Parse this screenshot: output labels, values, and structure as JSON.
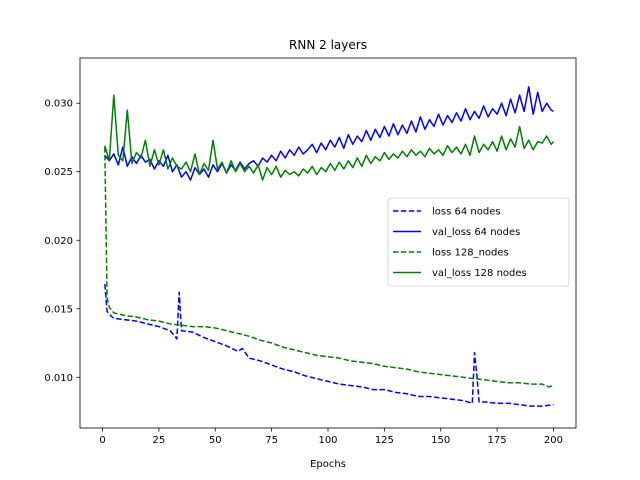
{
  "chart_data": {
    "type": "line",
    "title": "RNN 2 layers",
    "xlabel": "Epochs",
    "ylabel": "",
    "xlim": [
      -10,
      210
    ],
    "ylim": [
      0.0063,
      0.0333
    ],
    "xticks": [
      0,
      25,
      50,
      75,
      100,
      125,
      150,
      175,
      200
    ],
    "yticks": [
      0.01,
      0.015,
      0.02,
      0.025,
      0.03
    ],
    "ytick_labels": [
      "0.010",
      "0.015",
      "0.020",
      "0.025",
      "0.030"
    ],
    "grid": false,
    "legend_position": "center-right",
    "series": [
      {
        "name": "loss 64 nodes",
        "color": "#0000ff",
        "dash": true,
        "x": [
          1,
          2,
          3,
          5,
          10,
          15,
          20,
          25,
          30,
          33,
          34,
          35,
          40,
          45,
          50,
          55,
          60,
          62,
          65,
          70,
          75,
          80,
          85,
          90,
          95,
          100,
          105,
          110,
          115,
          120,
          125,
          130,
          135,
          140,
          145,
          150,
          155,
          160,
          164,
          165,
          166,
          167,
          170,
          175,
          180,
          185,
          190,
          195,
          200
        ],
        "y": [
          0.0168,
          0.0148,
          0.0146,
          0.0143,
          0.0142,
          0.0141,
          0.0139,
          0.0137,
          0.0134,
          0.0128,
          0.0162,
          0.0134,
          0.0133,
          0.0129,
          0.0126,
          0.0123,
          0.0119,
          0.0121,
          0.0114,
          0.0112,
          0.0109,
          0.0106,
          0.0104,
          0.0101,
          0.0099,
          0.0097,
          0.0095,
          0.0094,
          0.0093,
          0.0091,
          0.0091,
          0.0089,
          0.0088,
          0.0086,
          0.0086,
          0.0085,
          0.0084,
          0.0083,
          0.0081,
          0.0118,
          0.0102,
          0.0082,
          0.0082,
          0.0081,
          0.0081,
          0.008,
          0.0079,
          0.0079,
          0.008
        ]
      },
      {
        "name": "val_loss 64 nodes",
        "color": "#0000ff",
        "dash": false,
        "x": [
          1,
          3,
          5,
          7,
          9,
          11,
          13,
          15,
          17,
          19,
          21,
          23,
          25,
          27,
          29,
          31,
          33,
          35,
          37,
          39,
          41,
          43,
          45,
          47,
          49,
          51,
          53,
          55,
          57,
          59,
          61,
          63,
          65,
          67,
          69,
          71,
          73,
          75,
          77,
          79,
          81,
          83,
          85,
          87,
          89,
          91,
          93,
          95,
          97,
          99,
          101,
          103,
          105,
          107,
          109,
          111,
          113,
          115,
          117,
          119,
          121,
          123,
          125,
          127,
          129,
          131,
          133,
          135,
          137,
          139,
          141,
          143,
          145,
          147,
          149,
          151,
          153,
          155,
          157,
          159,
          161,
          163,
          165,
          167,
          169,
          171,
          173,
          175,
          177,
          179,
          181,
          183,
          185,
          187,
          189,
          191,
          193,
          195,
          197,
          199,
          200
        ],
        "y": [
          0.0262,
          0.0258,
          0.0263,
          0.0255,
          0.0268,
          0.0254,
          0.0261,
          0.0256,
          0.0262,
          0.0257,
          0.0259,
          0.0252,
          0.0258,
          0.0254,
          0.0262,
          0.025,
          0.0255,
          0.0246,
          0.025,
          0.0244,
          0.0253,
          0.0248,
          0.0252,
          0.0246,
          0.0255,
          0.025,
          0.0256,
          0.0249,
          0.0255,
          0.0251,
          0.0257,
          0.0252,
          0.0256,
          0.0258,
          0.0254,
          0.026,
          0.0257,
          0.0262,
          0.0258,
          0.0265,
          0.026,
          0.0266,
          0.0262,
          0.0268,
          0.0263,
          0.0266,
          0.027,
          0.0264,
          0.0271,
          0.0266,
          0.0273,
          0.0268,
          0.0275,
          0.0267,
          0.0277,
          0.027,
          0.0276,
          0.0272,
          0.028,
          0.0273,
          0.0281,
          0.0275,
          0.0283,
          0.0276,
          0.0285,
          0.0277,
          0.0284,
          0.0278,
          0.0287,
          0.0279,
          0.029,
          0.0281,
          0.0288,
          0.0283,
          0.0292,
          0.0284,
          0.0291,
          0.0286,
          0.0293,
          0.0287,
          0.0296,
          0.0288,
          0.0294,
          0.0289,
          0.0298,
          0.029,
          0.0296,
          0.0292,
          0.03,
          0.0291,
          0.0303,
          0.0293,
          0.0306,
          0.0294,
          0.0312,
          0.0292,
          0.0308,
          0.0294,
          0.03,
          0.0295,
          0.0294
        ]
      },
      {
        "name": "loss 128_nodes",
        "color": "#008000",
        "dash": true,
        "x": [
          1,
          2,
          3,
          5,
          10,
          15,
          20,
          25,
          30,
          35,
          40,
          45,
          50,
          55,
          60,
          65,
          70,
          75,
          80,
          85,
          90,
          95,
          100,
          105,
          110,
          115,
          120,
          125,
          130,
          135,
          140,
          145,
          150,
          155,
          160,
          165,
          170,
          175,
          180,
          185,
          190,
          195,
          198,
          200
        ],
        "y": [
          0.0268,
          0.0158,
          0.0151,
          0.0147,
          0.0145,
          0.0144,
          0.0142,
          0.0141,
          0.0139,
          0.0138,
          0.0137,
          0.0137,
          0.0136,
          0.0134,
          0.0132,
          0.013,
          0.0127,
          0.0125,
          0.0122,
          0.012,
          0.0118,
          0.0116,
          0.0115,
          0.0114,
          0.0112,
          0.0111,
          0.011,
          0.0108,
          0.0107,
          0.0106,
          0.0104,
          0.0103,
          0.0102,
          0.0101,
          0.01,
          0.0099,
          0.0098,
          0.0097,
          0.0096,
          0.0096,
          0.0095,
          0.0095,
          0.0093,
          0.0094
        ]
      },
      {
        "name": "val_loss 128 nodes",
        "color": "#008000",
        "dash": false,
        "x": [
          1,
          3,
          5,
          7,
          9,
          11,
          13,
          15,
          17,
          19,
          21,
          23,
          25,
          27,
          29,
          31,
          33,
          35,
          37,
          39,
          41,
          43,
          45,
          47,
          49,
          51,
          53,
          55,
          57,
          59,
          61,
          63,
          65,
          67,
          69,
          71,
          73,
          75,
          77,
          79,
          81,
          83,
          85,
          87,
          89,
          91,
          93,
          95,
          97,
          99,
          101,
          103,
          105,
          107,
          109,
          111,
          113,
          115,
          117,
          119,
          121,
          123,
          125,
          127,
          129,
          131,
          133,
          135,
          137,
          139,
          141,
          143,
          145,
          147,
          149,
          151,
          153,
          155,
          157,
          159,
          161,
          163,
          165,
          167,
          169,
          171,
          173,
          175,
          177,
          179,
          181,
          183,
          185,
          187,
          189,
          191,
          193,
          195,
          197,
          199,
          200
        ],
        "y": [
          0.0269,
          0.0258,
          0.0306,
          0.0262,
          0.0258,
          0.0295,
          0.0256,
          0.0264,
          0.026,
          0.0273,
          0.0254,
          0.0266,
          0.0255,
          0.0266,
          0.0252,
          0.026,
          0.0254,
          0.0252,
          0.0257,
          0.025,
          0.0263,
          0.0248,
          0.0256,
          0.0251,
          0.0273,
          0.0252,
          0.0257,
          0.0249,
          0.0258,
          0.025,
          0.0256,
          0.025,
          0.0254,
          0.0249,
          0.0255,
          0.0244,
          0.0253,
          0.0248,
          0.0254,
          0.0246,
          0.0251,
          0.0248,
          0.025,
          0.0247,
          0.0252,
          0.0249,
          0.0254,
          0.0248,
          0.0253,
          0.025,
          0.0256,
          0.0251,
          0.0257,
          0.0252,
          0.0258,
          0.0253,
          0.026,
          0.0254,
          0.0262,
          0.0256,
          0.0261,
          0.0258,
          0.0264,
          0.0259,
          0.0263,
          0.026,
          0.0265,
          0.0261,
          0.0266,
          0.0262,
          0.0265,
          0.0261,
          0.0267,
          0.0263,
          0.0266,
          0.0262,
          0.0269,
          0.0264,
          0.0268,
          0.0263,
          0.027,
          0.0262,
          0.0276,
          0.0264,
          0.027,
          0.0266,
          0.0272,
          0.0265,
          0.0276,
          0.0266,
          0.0274,
          0.0268,
          0.0283,
          0.0267,
          0.0273,
          0.0266,
          0.0272,
          0.0271,
          0.0276,
          0.027,
          0.0272
        ]
      }
    ]
  }
}
